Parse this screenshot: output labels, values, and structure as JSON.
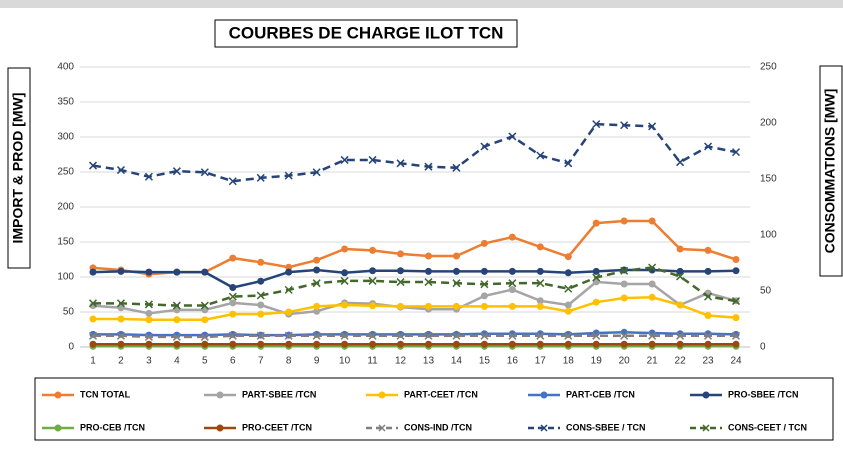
{
  "chart_data": {
    "type": "line",
    "title": "COURBES DE CHARGE ILOT TCN",
    "ylabel": "IMPORT & PROD [MW]",
    "y2label": "CONSOMMATIONS [MW]",
    "categories": [
      1,
      2,
      3,
      4,
      5,
      6,
      7,
      8,
      9,
      10,
      11,
      12,
      13,
      14,
      15,
      16,
      17,
      18,
      19,
      20,
      21,
      22,
      23,
      24
    ],
    "ylim": [
      0,
      400
    ],
    "yticks": [
      0,
      50,
      100,
      150,
      200,
      250,
      300,
      350,
      400
    ],
    "y2lim": [
      0,
      250
    ],
    "y2ticks": [
      0,
      50,
      100,
      150,
      200,
      250
    ],
    "grid": true,
    "legend": "bottom",
    "series": [
      {
        "name": "TCN TOTAL",
        "color": "#ed7d31",
        "style": "solid",
        "values": [
          113,
          110,
          104,
          107,
          107,
          127,
          121,
          114,
          124,
          140,
          138,
          133,
          130,
          130,
          148,
          157,
          143,
          129,
          177,
          180,
          180,
          140,
          138,
          125
        ]
      },
      {
        "name": "PART-SBEE /TCN",
        "color": "#a5a5a5",
        "style": "solid",
        "values": [
          59,
          56,
          48,
          53,
          53,
          63,
          60,
          47,
          51,
          63,
          62,
          57,
          54,
          54,
          73,
          82,
          66,
          60,
          93,
          90,
          90,
          60,
          77,
          66
        ]
      },
      {
        "name": "PART-CEET /TCN",
        "color": "#ffc000",
        "style": "solid",
        "values": [
          40,
          40,
          39,
          39,
          39,
          47,
          47,
          50,
          58,
          60,
          59,
          58,
          58,
          58,
          58,
          58,
          58,
          51,
          64,
          70,
          71,
          60,
          45,
          42
        ]
      },
      {
        "name": "PART-CEB /TCN",
        "color": "#4472c4",
        "style": "solid",
        "values": [
          18,
          18,
          17,
          17,
          17,
          18,
          17,
          17,
          18,
          18,
          18,
          18,
          18,
          18,
          19,
          19,
          19,
          18,
          20,
          21,
          20,
          19,
          19,
          18
        ]
      },
      {
        "name": "PRO-SBEE /TCN",
        "color": "#264478",
        "style": "solid",
        "values": [
          107,
          108,
          107,
          107,
          107,
          85,
          94,
          107,
          110,
          106,
          109,
          109,
          108,
          108,
          108,
          108,
          108,
          106,
          108,
          110,
          110,
          108,
          108,
          109
        ]
      },
      {
        "name": "PRO-CEB /TCN",
        "color": "#70ad47",
        "style": "solid",
        "values": [
          1,
          1,
          1,
          1,
          1,
          1,
          1,
          1,
          1,
          1,
          1,
          1,
          1,
          1,
          1,
          1,
          1,
          1,
          1,
          1,
          1,
          1,
          1,
          1
        ]
      },
      {
        "name": "PRO-CEET /TCN",
        "color": "#9e480e",
        "style": "solid",
        "values": [
          4,
          4,
          4,
          4,
          4,
          4,
          4,
          4,
          4,
          4,
          4,
          4,
          4,
          4,
          4,
          4,
          4,
          4,
          4,
          4,
          4,
          4,
          4,
          4
        ]
      },
      {
        "name": "CONS-IND /TCN",
        "color": "#7f7f7f",
        "style": "dashed",
        "axis": "y2",
        "values": [
          10,
          10,
          9,
          9,
          9,
          10,
          10,
          10,
          10,
          10,
          10,
          10,
          10,
          10,
          10,
          10,
          10,
          10,
          10,
          10,
          10,
          10,
          10,
          10
        ]
      },
      {
        "name": "CONS-SBEE / TCN",
        "color": "#264478",
        "style": "dashed",
        "axis": "y2",
        "values": [
          162,
          158,
          152,
          157,
          156,
          148,
          151,
          153,
          156,
          167,
          167,
          164,
          161,
          160,
          179,
          188,
          171,
          164,
          199,
          198,
          197,
          165,
          179,
          174
        ]
      },
      {
        "name": "CONS-CEET / TCN",
        "color": "#43682b",
        "style": "dashed",
        "axis": "y2",
        "values": [
          39,
          39,
          38,
          37,
          37,
          45,
          46,
          51,
          57,
          59,
          59,
          58,
          58,
          57,
          56,
          57,
          57,
          52,
          62,
          68,
          71,
          63,
          45,
          41
        ]
      }
    ]
  }
}
